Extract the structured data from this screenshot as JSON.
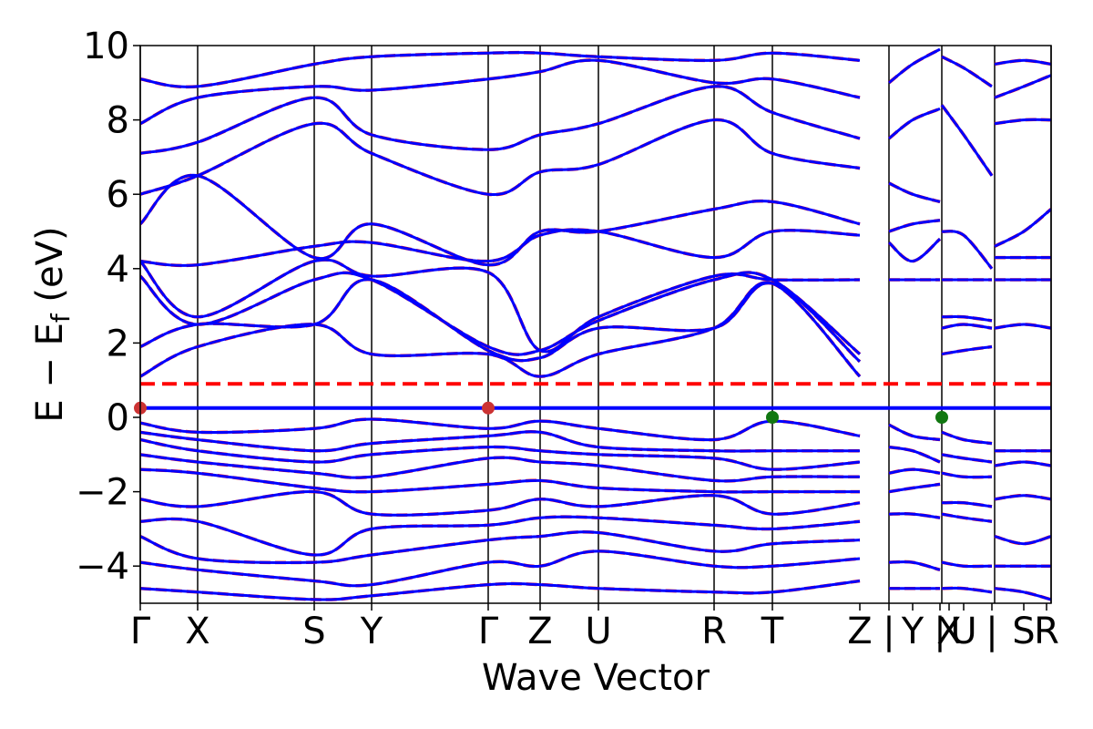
{
  "chart_data": {
    "type": "line",
    "title": "",
    "xlabel": "Wave Vector",
    "ylabel": "E − E",
    "ylabel_subscript": "f",
    "ylabel_unit": " (eV)",
    "xlim": [
      0,
      1000
    ],
    "ylim": [
      -5,
      10
    ],
    "yticks": [
      -4,
      -2,
      0,
      2,
      4,
      6,
      8,
      10
    ],
    "ytick_labels": [
      "−4",
      "−2",
      "0",
      "2",
      "4",
      "6",
      "8",
      "10"
    ],
    "high_symmetry_points": [
      {
        "label": "Γ",
        "x": 0
      },
      {
        "label": "X",
        "x": 63
      },
      {
        "label": "S",
        "x": 191
      },
      {
        "label": "Y",
        "x": 254
      },
      {
        "label": "Γ",
        "x": 382
      },
      {
        "label": "Z",
        "x": 439
      },
      {
        "label": "U",
        "x": 503
      },
      {
        "label": "R",
        "x": 630
      },
      {
        "label": "T",
        "x": 694
      },
      {
        "label": "Z",
        "x": 790
      },
      {
        "label": "|",
        "x": 822
      },
      {
        "label": "Y",
        "x": 848
      },
      {
        "label": "|",
        "x": 878
      },
      {
        "label": "X",
        "x": 888
      },
      {
        "label": "U",
        "x": 904
      },
      {
        "label": "|",
        "x": 935
      },
      {
        "label": "S",
        "x": 970
      },
      {
        "label": "R",
        "x": 995
      }
    ],
    "vertical_lines": [
      0,
      63,
      191,
      254,
      382,
      439,
      503,
      630,
      694,
      822,
      880,
      938,
      1000
    ],
    "fermi_lines": [
      {
        "name": "spin-up Fermi level",
        "y": 0.25,
        "color": "#0000ff",
        "style": "solid"
      },
      {
        "name": "spin-down Fermi level",
        "y": 0.9,
        "color": "#ff0000",
        "style": "dashed"
      }
    ],
    "markers": [
      {
        "name": "VBM",
        "x": 0,
        "y": 0.25,
        "color": "#cc3333"
      },
      {
        "name": "VBM",
        "x": 382,
        "y": 0.25,
        "color": "#cc3333"
      },
      {
        "name": "CBM",
        "x": 694,
        "y": 0.0,
        "color": "#117711"
      },
      {
        "name": "CBM",
        "x": 880,
        "y": 0.0,
        "color": "#117711"
      }
    ],
    "series": [
      {
        "style": "up",
        "color": "#0000ff",
        "segments_from": "bands"
      },
      {
        "style": "down",
        "color": "#ff0000",
        "segments_from": "bands"
      }
    ],
    "bands": [
      {
        "x": [
          0,
          63,
          191,
          254,
          382,
          439,
          503,
          630,
          694,
          790
        ],
        "y": [
          1.1,
          1.9,
          2.5,
          1.7,
          1.7,
          1.1,
          1.7,
          2.4,
          3.6,
          1.1
        ]
      },
      {
        "x": [
          0,
          63,
          191,
          254,
          382,
          439,
          503,
          630,
          694,
          790
        ],
        "y": [
          1.9,
          2.5,
          2.5,
          3.7,
          1.8,
          1.6,
          2.4,
          2.4,
          3.6,
          1.5
        ]
      },
      {
        "x": [
          0,
          63,
          191,
          254,
          382,
          439,
          503,
          630,
          694,
          790
        ],
        "y": [
          3.8,
          2.5,
          3.7,
          3.7,
          1.9,
          1.8,
          2.6,
          3.7,
          3.7,
          1.7
        ]
      },
      {
        "x": [
          0,
          63,
          191,
          254,
          382,
          439,
          503,
          630,
          694,
          790
        ],
        "y": [
          4.2,
          2.7,
          4.2,
          3.8,
          3.9,
          1.8,
          2.7,
          3.8,
          3.7,
          3.7
        ]
      },
      {
        "x": [
          0,
          63,
          191,
          254,
          382,
          439,
          503,
          630,
          694,
          790
        ],
        "y": [
          4.2,
          4.1,
          4.6,
          4.7,
          4.2,
          4.9,
          5.0,
          4.3,
          5.0,
          4.9
        ]
      },
      {
        "x": [
          0,
          63,
          191,
          254,
          382,
          439,
          503,
          630,
          694,
          790
        ],
        "y": [
          5.2,
          6.5,
          4.3,
          5.2,
          4.1,
          5.0,
          5.0,
          5.6,
          5.8,
          5.2
        ]
      },
      {
        "x": [
          0,
          63,
          191,
          254,
          382,
          439,
          503,
          630,
          694,
          790
        ],
        "y": [
          6.0,
          6.5,
          7.9,
          7.1,
          6.0,
          6.6,
          6.8,
          8.0,
          7.1,
          6.7
        ]
      },
      {
        "x": [
          0,
          63,
          191,
          254,
          382,
          439,
          503,
          630,
          694,
          790
        ],
        "y": [
          7.1,
          7.4,
          8.6,
          7.6,
          7.2,
          7.6,
          7.9,
          8.9,
          8.2,
          7.5
        ]
      },
      {
        "x": [
          0,
          63,
          191,
          254,
          382,
          439,
          503,
          630,
          694,
          790
        ],
        "y": [
          7.9,
          8.6,
          8.9,
          8.8,
          9.1,
          9.3,
          9.6,
          9.0,
          9.1,
          8.6
        ]
      },
      {
        "x": [
          0,
          63,
          191,
          254,
          382,
          439,
          503,
          630,
          694,
          790
        ],
        "y": [
          9.1,
          8.9,
          9.5,
          9.7,
          9.8,
          9.8,
          9.7,
          9.6,
          9.8,
          9.6
        ]
      },
      {
        "x": [
          0,
          63,
          191,
          254,
          382,
          439,
          503,
          630,
          694,
          790
        ],
        "y": [
          -0.15,
          -0.4,
          -0.3,
          -0.05,
          -0.3,
          -0.1,
          -0.3,
          -0.6,
          -0.1,
          -0.5
        ]
      },
      {
        "x": [
          0,
          63,
          191,
          254,
          382,
          439,
          503,
          630,
          694,
          790
        ],
        "y": [
          -0.4,
          -0.6,
          -0.9,
          -0.7,
          -0.5,
          -0.4,
          -0.8,
          -0.9,
          -0.9,
          -0.9
        ]
      },
      {
        "x": [
          0,
          63,
          191,
          254,
          382,
          439,
          503,
          630,
          694,
          790
        ],
        "y": [
          -0.6,
          -0.9,
          -1.2,
          -1.0,
          -0.8,
          -0.9,
          -1.0,
          -1.1,
          -1.4,
          -1.2
        ]
      },
      {
        "x": [
          0,
          63,
          191,
          254,
          382,
          439,
          503,
          630,
          694,
          790
        ],
        "y": [
          -1.0,
          -1.2,
          -1.5,
          -1.6,
          -1.1,
          -1.2,
          -1.3,
          -1.7,
          -1.6,
          -1.6
        ]
      },
      {
        "x": [
          0,
          63,
          191,
          254,
          382,
          439,
          503,
          630,
          694,
          790
        ],
        "y": [
          -1.4,
          -1.5,
          -1.9,
          -2.0,
          -1.8,
          -1.7,
          -1.9,
          -2.0,
          -2.0,
          -2.0
        ]
      },
      {
        "x": [
          0,
          63,
          191,
          254,
          382,
          439,
          503,
          630,
          694,
          790
        ],
        "y": [
          -2.2,
          -2.4,
          -2.0,
          -2.6,
          -2.5,
          -2.2,
          -2.4,
          -2.1,
          -2.6,
          -2.3
        ]
      },
      {
        "x": [
          0,
          63,
          191,
          254,
          382,
          439,
          503,
          630,
          694,
          790
        ],
        "y": [
          -2.8,
          -2.8,
          -3.7,
          -3.0,
          -2.9,
          -2.7,
          -2.7,
          -2.9,
          -3.0,
          -2.8
        ]
      },
      {
        "x": [
          0,
          63,
          191,
          254,
          382,
          439,
          503,
          630,
          694,
          790
        ],
        "y": [
          -3.2,
          -3.8,
          -3.9,
          -3.7,
          -3.3,
          -3.2,
          -3.1,
          -3.6,
          -3.4,
          -3.3
        ]
      },
      {
        "x": [
          0,
          63,
          191,
          254,
          382,
          439,
          503,
          630,
          694,
          790
        ],
        "y": [
          -3.9,
          -4.1,
          -4.4,
          -4.5,
          -3.9,
          -4.0,
          -3.6,
          -4.0,
          -4.0,
          -3.8
        ]
      },
      {
        "x": [
          0,
          63,
          191,
          254,
          382,
          439,
          503,
          630,
          694,
          790
        ],
        "y": [
          -4.6,
          -4.7,
          -4.9,
          -4.8,
          -4.5,
          -4.5,
          -4.6,
          -4.7,
          -4.7,
          -4.4
        ]
      },
      {
        "x": [
          822,
          848,
          878
        ],
        "y": [
          9.0,
          9.5,
          9.9
        ]
      },
      {
        "x": [
          822,
          848,
          878
        ],
        "y": [
          7.5,
          8.0,
          8.3
        ]
      },
      {
        "x": [
          822,
          848,
          878
        ],
        "y": [
          6.3,
          6.0,
          5.8
        ]
      },
      {
        "x": [
          822,
          848,
          878
        ],
        "y": [
          5.0,
          5.2,
          5.3
        ]
      },
      {
        "x": [
          822,
          848,
          878
        ],
        "y": [
          4.7,
          4.2,
          4.8
        ]
      },
      {
        "x": [
          822,
          848,
          878
        ],
        "y": [
          3.7,
          3.7,
          3.7
        ]
      },
      {
        "x": [
          822,
          848,
          878
        ],
        "y": [
          -0.2,
          -0.5,
          -0.6
        ]
      },
      {
        "x": [
          822,
          848,
          878
        ],
        "y": [
          -0.8,
          -0.9,
          -1.2
        ]
      },
      {
        "x": [
          822,
          848,
          878
        ],
        "y": [
          -1.5,
          -1.4,
          -1.5
        ]
      },
      {
        "x": [
          822,
          848,
          878
        ],
        "y": [
          -2.0,
          -1.9,
          -1.8
        ]
      },
      {
        "x": [
          822,
          848,
          878
        ],
        "y": [
          -2.6,
          -2.6,
          -2.7
        ]
      },
      {
        "x": [
          822,
          848,
          878
        ],
        "y": [
          -3.9,
          -3.9,
          -4.1
        ]
      },
      {
        "x": [
          822,
          848,
          878
        ],
        "y": [
          -4.6,
          -4.6,
          -4.6
        ]
      },
      {
        "x": [
          880,
          904,
          935
        ],
        "y": [
          9.7,
          9.4,
          8.9
        ]
      },
      {
        "x": [
          880,
          904,
          935
        ],
        "y": [
          8.4,
          7.6,
          6.5
        ]
      },
      {
        "x": [
          880,
          904,
          935
        ],
        "y": [
          5.0,
          4.9,
          4.0
        ]
      },
      {
        "x": [
          880,
          904,
          935
        ],
        "y": [
          3.7,
          3.7,
          3.7
        ]
      },
      {
        "x": [
          880,
          904,
          935
        ],
        "y": [
          2.7,
          2.7,
          2.6
        ]
      },
      {
        "x": [
          880,
          904,
          935
        ],
        "y": [
          2.4,
          2.5,
          2.4
        ]
      },
      {
        "x": [
          880,
          904,
          935
        ],
        "y": [
          1.7,
          1.8,
          1.9
        ]
      },
      {
        "x": [
          880,
          904,
          935
        ],
        "y": [
          -0.4,
          -0.6,
          -0.7
        ]
      },
      {
        "x": [
          880,
          904,
          935
        ],
        "y": [
          -1.0,
          -1.1,
          -1.2
        ]
      },
      {
        "x": [
          880,
          904,
          935
        ],
        "y": [
          -1.5,
          -1.6,
          -1.6
        ]
      },
      {
        "x": [
          880,
          904,
          935
        ],
        "y": [
          -2.3,
          -2.3,
          -2.4
        ]
      },
      {
        "x": [
          880,
          904,
          935
        ],
        "y": [
          -2.6,
          -2.7,
          -2.8
        ]
      },
      {
        "x": [
          880,
          904,
          935
        ],
        "y": [
          -3.9,
          -4.0,
          -4.0
        ]
      },
      {
        "x": [
          880,
          904,
          935
        ],
        "y": [
          -4.6,
          -4.6,
          -4.7
        ]
      },
      {
        "x": [
          938,
          970,
          1000
        ],
        "y": [
          9.5,
          9.6,
          9.5
        ]
      },
      {
        "x": [
          938,
          970,
          1000
        ],
        "y": [
          8.6,
          8.9,
          9.2
        ]
      },
      {
        "x": [
          938,
          970,
          1000
        ],
        "y": [
          7.9,
          8.0,
          8.0
        ]
      },
      {
        "x": [
          938,
          970,
          1000
        ],
        "y": [
          4.6,
          5.0,
          5.6
        ]
      },
      {
        "x": [
          938,
          970,
          1000
        ],
        "y": [
          4.3,
          4.3,
          4.3
        ]
      },
      {
        "x": [
          938,
          970,
          1000
        ],
        "y": [
          3.7,
          3.7,
          3.7
        ]
      },
      {
        "x": [
          938,
          970,
          1000
        ],
        "y": [
          2.4,
          2.5,
          2.4
        ]
      },
      {
        "x": [
          938,
          970,
          1000
        ],
        "y": [
          -0.9,
          -0.9,
          -0.9
        ]
      },
      {
        "x": [
          938,
          970,
          1000
        ],
        "y": [
          -1.3,
          -1.2,
          -1.3
        ]
      },
      {
        "x": [
          938,
          970,
          1000
        ],
        "y": [
          -2.2,
          -2.1,
          -2.2
        ]
      },
      {
        "x": [
          938,
          970,
          1000
        ],
        "y": [
          -3.2,
          -3.4,
          -3.2
        ]
      },
      {
        "x": [
          938,
          970,
          1000
        ],
        "y": [
          -4.0,
          -4.0,
          -4.0
        ]
      },
      {
        "x": [
          938,
          970,
          1000
        ],
        "y": [
          -4.6,
          -4.7,
          -4.9
        ]
      }
    ]
  }
}
